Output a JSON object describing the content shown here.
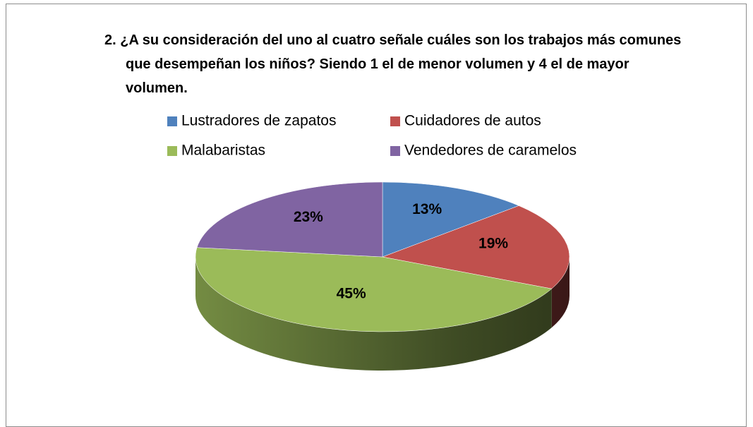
{
  "chart_data": {
    "type": "pie",
    "title": "2.  ¿A su consideración del uno al cuatro señale cuáles son los trabajos más comunes que desempeñan los niños?  Siendo 1 el de menor volumen y 4 el de mayor volumen.",
    "categories": [
      "Lustradores de zapatos",
      "Cuidadores de autos",
      "Malabaristas",
      "Vendedores de caramelos"
    ],
    "values": [
      13,
      19,
      45,
      23
    ],
    "value_labels": [
      "13%",
      "19%",
      "45%",
      "23%"
    ],
    "colors": [
      "#4f81bd",
      "#c0504d",
      "#9bbb59",
      "#8064a2"
    ],
    "legend": "top"
  }
}
